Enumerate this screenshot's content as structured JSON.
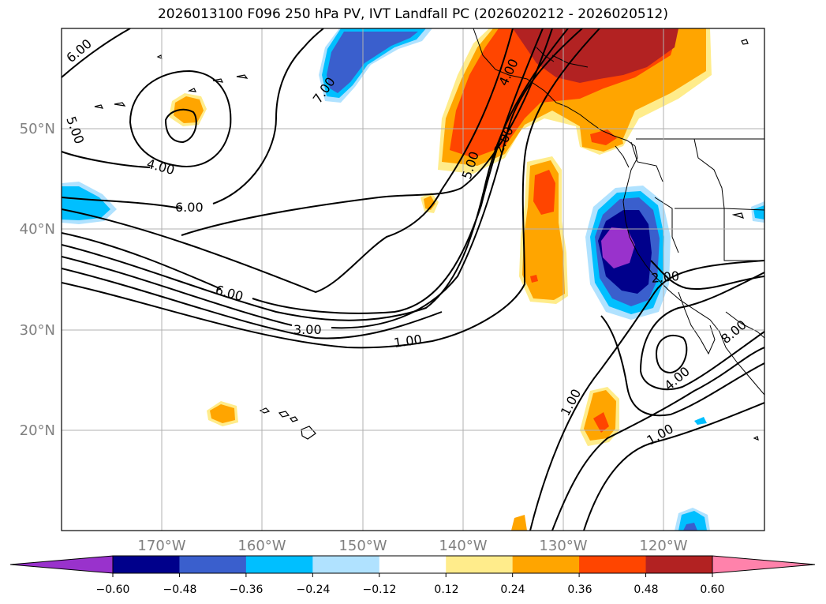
{
  "title": "2026013100 F096 250 hPa PV, IVT Landfall PC (2026020212 - 2026020512)",
  "longitude_labels": [
    "170°W",
    "160°W",
    "150°W",
    "140°W",
    "130°W",
    "120°W"
  ],
  "latitude_labels": [
    "50°N",
    "40°N",
    "30°N",
    "20°N"
  ],
  "contour_labels": [
    "6.00",
    "5.00",
    "4.00",
    "6.00",
    "7.00",
    "4.00",
    "5.00",
    "2.00",
    "6.00",
    "3.00",
    "1.00",
    "1.00",
    "2.00",
    "4.00",
    "8.00",
    "1.00"
  ],
  "colorbar": {
    "ticks": [
      "−0.60",
      "−0.48",
      "−0.36",
      "−0.24",
      "−0.12",
      "0.12",
      "0.24",
      "0.36",
      "0.48",
      "0.60"
    ],
    "colors": [
      "#9932cc",
      "#00008b",
      "#3a5fcd",
      "#00bfff",
      "#b0e2ff",
      "#ffffff",
      "#ffec8b",
      "#ffa500",
      "#ff4500",
      "#b22222",
      "#ff82ab"
    ]
  },
  "fill_colors": {
    "purple": "#9932cc",
    "navy": "#00008b",
    "blue": "#3a5fcd",
    "cyan": "#00bfff",
    "lightblue": "#b0e2ff",
    "yellow": "#ffec8b",
    "orange": "#ffa500",
    "red": "#ff4500",
    "darkred": "#b22222"
  }
}
